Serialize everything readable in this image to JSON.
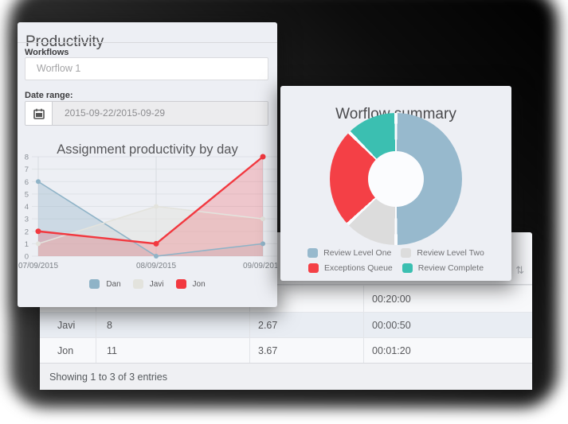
{
  "productivity_panel": {
    "title": "Productivity",
    "workflows_label": "Workflows",
    "workflow_value": "Worflow 1",
    "date_range_label": "Date range:",
    "date_range_value": "2015-09-22/2015-09-29"
  },
  "summary_panel": {
    "title": "Worflow summary"
  },
  "table_panel": {
    "sort_icon": "⇅",
    "rows": [
      {
        "name": "",
        "count": "",
        "avg": "",
        "time": "00:20:00"
      },
      {
        "name": "Javi",
        "count": "8",
        "avg": "2.67",
        "time": "00:00:50"
      },
      {
        "name": "Jon",
        "count": "11",
        "avg": "3.67",
        "time": "00:01:20"
      }
    ],
    "footer": "Showing 1 to 3 of 3 entries"
  },
  "chart_data": [
    {
      "type": "line",
      "title": "Assignment productivity by day",
      "x": [
        "07/09/2015",
        "08/09/2015",
        "09/09/2015"
      ],
      "series": [
        {
          "name": "Dan",
          "values": [
            6,
            0,
            1
          ],
          "color": "#8fb3c7",
          "fill": "rgba(143,179,199,0.35)"
        },
        {
          "name": "Javi",
          "values": [
            1,
            4,
            3
          ],
          "color": "#e3e3dd",
          "fill": "rgba(227,227,221,0.50)"
        },
        {
          "name": "Jon",
          "values": [
            2,
            1,
            8
          ],
          "color": "#f2383f",
          "fill": "rgba(242,56,63,0.22)"
        }
      ],
      "ylim": [
        0,
        8
      ],
      "yticks": [
        0,
        1,
        2,
        3,
        4,
        5,
        6,
        7,
        8
      ],
      "grid": true,
      "legend_position": "bottom"
    },
    {
      "type": "pie",
      "donut": true,
      "title": "Worflow summary",
      "categories": [
        "Review Level One",
        "Review Level Two",
        "Exceptions Queue",
        "Review Complete"
      ],
      "values": [
        50,
        13,
        24.5,
        12.5
      ],
      "unit": "percent",
      "colors": [
        "#97b9cd",
        "#dcdcdc",
        "#f44046",
        "#3bbfb1"
      ],
      "legend_position": "bottom"
    }
  ]
}
